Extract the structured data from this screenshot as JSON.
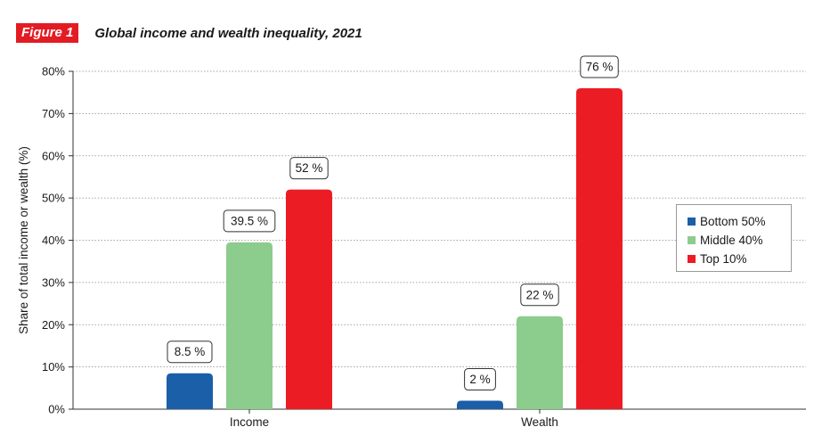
{
  "figure": {
    "badge": "Figure 1",
    "title": "Global income and wealth inequality, 2021"
  },
  "colors": {
    "bottom": "#1a5fa8",
    "middle": "#8ccc8c",
    "top": "#ec1c24",
    "accent": "#e31b23"
  },
  "chart_data": {
    "type": "bar",
    "categories": [
      "Income",
      "Wealth"
    ],
    "series": [
      {
        "name": "Bottom 50%",
        "values": [
          8.5,
          2
        ],
        "labels": [
          "8.5 %",
          "2 %"
        ],
        "color": "#1a5fa8"
      },
      {
        "name": "Middle 40%",
        "values": [
          39.5,
          22
        ],
        "labels": [
          "39.5 %",
          "22 %"
        ],
        "color": "#8ccc8c"
      },
      {
        "name": "Top 10%",
        "values": [
          52,
          76
        ],
        "labels": [
          "52 %",
          "76 %"
        ],
        "color": "#ec1c24"
      }
    ],
    "ylabel": "Share of total income or wealth (%)",
    "xlabel": "",
    "ylim": [
      0,
      80
    ],
    "yticks": [
      0,
      10,
      20,
      30,
      40,
      50,
      60,
      70,
      80
    ],
    "ytick_labels": [
      "0%",
      "10%",
      "20%",
      "30%",
      "40%",
      "50%",
      "60%",
      "70%",
      "80%"
    ],
    "grid": true,
    "legend_position": "right"
  }
}
